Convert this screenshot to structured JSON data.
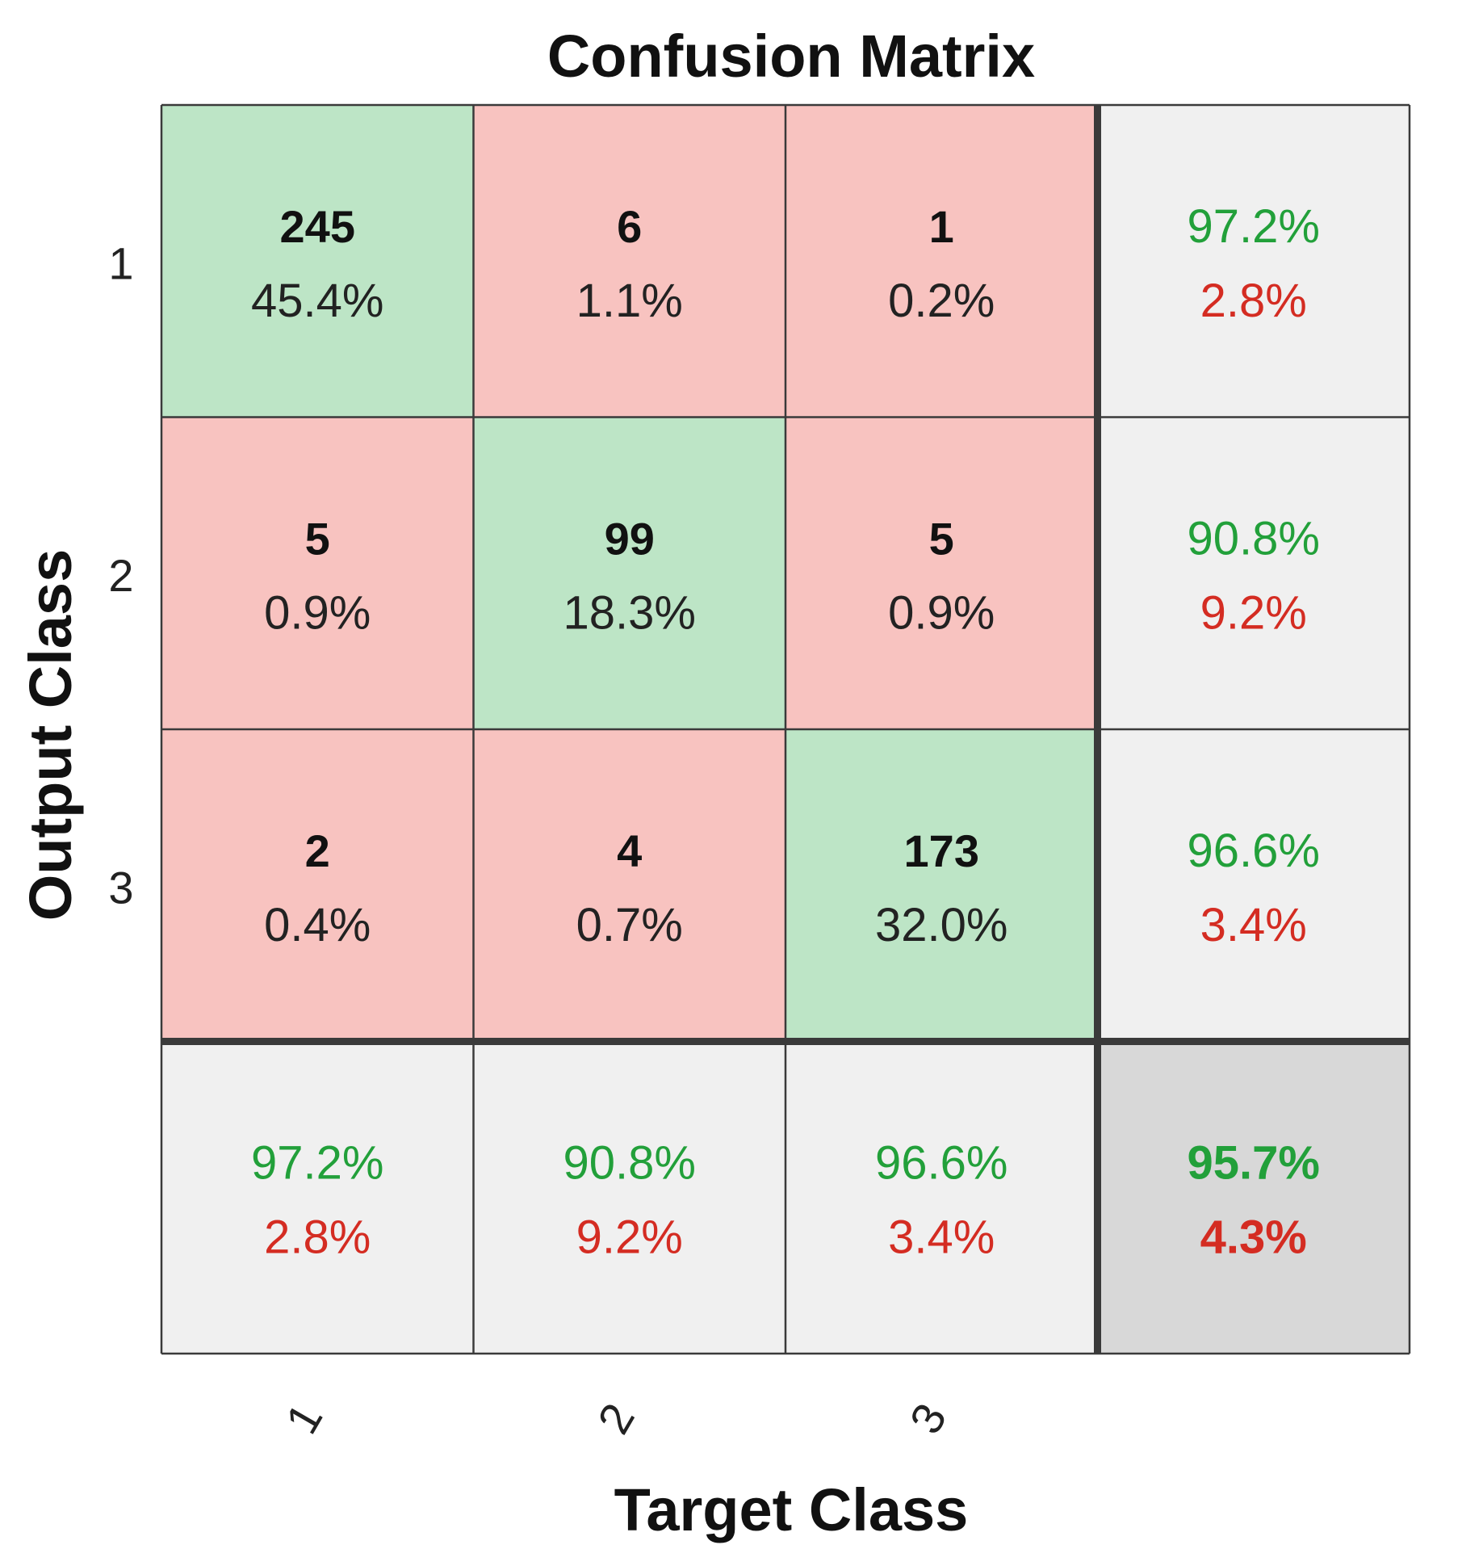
{
  "chart_data": {
    "type": "heatmap",
    "title": "Confusion Matrix",
    "xlabel": "Target Class",
    "ylabel": "Output Class",
    "x_ticks": [
      "1",
      "2",
      "3"
    ],
    "y_ticks": [
      "1",
      "2",
      "3"
    ],
    "cells": [
      [
        {
          "count": "245",
          "percent": "45.4%"
        },
        {
          "count": "6",
          "percent": "1.1%"
        },
        {
          "count": "1",
          "percent": "0.2%"
        }
      ],
      [
        {
          "count": "5",
          "percent": "0.9%"
        },
        {
          "count": "99",
          "percent": "18.3%"
        },
        {
          "count": "5",
          "percent": "0.9%"
        }
      ],
      [
        {
          "count": "2",
          "percent": "0.4%"
        },
        {
          "count": "4",
          "percent": "0.7%"
        },
        {
          "count": "173",
          "percent": "32.0%"
        }
      ]
    ],
    "row_summary": [
      {
        "correct": "97.2%",
        "error": "2.8%"
      },
      {
        "correct": "90.8%",
        "error": "9.2%"
      },
      {
        "correct": "96.6%",
        "error": "3.4%"
      }
    ],
    "column_summary": [
      {
        "correct": "97.2%",
        "error": "2.8%"
      },
      {
        "correct": "90.8%",
        "error": "9.2%"
      },
      {
        "correct": "96.6%",
        "error": "3.4%"
      }
    ],
    "overall": {
      "correct": "95.7%",
      "error": "4.3%"
    }
  },
  "colors": {
    "correct_cell": "#bde5c6",
    "error_cell": "#f8c3c0",
    "summary_cell": "#f0f0f0",
    "overall_cell": "#d8d8d8",
    "correct_text": "#22a03a",
    "error_text": "#d42c22",
    "grid_line": "#3a3a3a"
  }
}
